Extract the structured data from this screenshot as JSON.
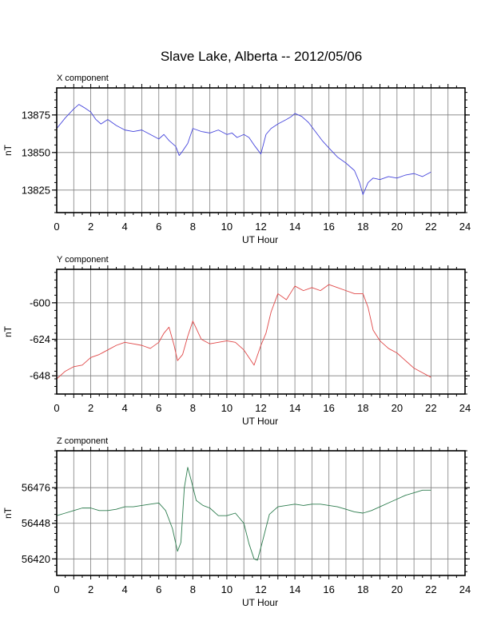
{
  "title": "Slave Lake, Alberta -- 2012/05/06",
  "chart_data": [
    {
      "type": "line",
      "title": "X component",
      "xlabel": "UT Hour",
      "ylabel": "nT",
      "xlim": [
        0,
        24
      ],
      "ylim": [
        13810,
        13893
      ],
      "xticks": [
        0,
        2,
        4,
        6,
        8,
        10,
        12,
        14,
        16,
        18,
        20,
        22,
        24
      ],
      "yticks": [
        13825,
        13850,
        13875
      ],
      "grid": true,
      "color": "#4646dc",
      "series": [
        {
          "x": [
            0,
            0.5,
            1,
            1.3,
            1.6,
            2,
            2.3,
            2.6,
            3,
            3.5,
            4,
            4.5,
            5,
            5.5,
            6,
            6.3,
            6.6,
            7,
            7.2,
            7.4,
            7.7,
            8,
            8.5,
            9,
            9.5,
            10,
            10.3,
            10.6,
            11,
            11.3,
            11.6,
            12,
            12.3,
            12.6,
            13,
            13.5,
            13.8,
            14,
            14.4,
            14.8,
            15.2,
            15.6,
            16,
            16.5,
            17,
            17.5,
            17.8,
            18,
            18.3,
            18.6,
            19,
            19.5,
            20,
            20.5,
            21,
            21.5,
            22
          ],
          "values": [
            13866,
            13873,
            13879,
            13882,
            13880,
            13877,
            13872,
            13869,
            13872,
            13868,
            13865,
            13864,
            13865,
            13862,
            13859,
            13862,
            13858,
            13854,
            13848,
            13851,
            13856,
            13866,
            13864,
            13863,
            13865,
            13862,
            13863,
            13860,
            13862,
            13860,
            13855,
            13849,
            13862,
            13866,
            13869,
            13872,
            13874,
            13876,
            13874,
            13870,
            13864,
            13858,
            13853,
            13847,
            13843,
            13838,
            13830,
            13822,
            13830,
            13833,
            13832,
            13834,
            13833,
            13835,
            13836,
            13834,
            13837
          ]
        }
      ]
    },
    {
      "type": "line",
      "title": "Y component",
      "xlabel": "UT Hour",
      "ylabel": "nT",
      "xlim": [
        0,
        24
      ],
      "ylim": [
        -660,
        -578
      ],
      "xticks": [
        0,
        2,
        4,
        6,
        8,
        10,
        12,
        14,
        16,
        18,
        20,
        22,
        24
      ],
      "yticks": [
        -648,
        -624,
        -600
      ],
      "grid": true,
      "color": "#e04848",
      "series": [
        {
          "x": [
            0,
            0.5,
            1,
            1.5,
            2,
            2.5,
            3,
            3.5,
            4,
            4.5,
            5,
            5.5,
            6,
            6.3,
            6.6,
            6.9,
            7.1,
            7.4,
            7.7,
            8,
            8.5,
            9,
            9.5,
            10,
            10.5,
            11,
            11.3,
            11.6,
            12,
            12.3,
            12.6,
            13,
            13.5,
            14,
            14.5,
            15,
            15.5,
            16,
            16.5,
            17,
            17.5,
            18,
            18.3,
            18.6,
            19,
            19.5,
            20,
            20.5,
            21,
            21.5,
            22
          ],
          "values": [
            -650,
            -645,
            -642,
            -641,
            -636,
            -634,
            -631,
            -628,
            -626,
            -627,
            -628,
            -630,
            -626,
            -620,
            -616,
            -628,
            -638,
            -634,
            -622,
            -612,
            -624,
            -627,
            -626,
            -625,
            -626,
            -631,
            -636,
            -641,
            -628,
            -620,
            -606,
            -594,
            -598,
            -589,
            -592,
            -590,
            -592,
            -588,
            -590,
            -592,
            -594,
            -594,
            -603,
            -618,
            -625,
            -630,
            -633,
            -638,
            -643,
            -646,
            -649
          ]
        }
      ]
    },
    {
      "type": "line",
      "title": "Z component",
      "xlabel": "UT Hour",
      "ylabel": "nT",
      "xlim": [
        0,
        24
      ],
      "ylim": [
        56407,
        56505
      ],
      "xticks": [
        0,
        2,
        4,
        6,
        8,
        10,
        12,
        14,
        16,
        18,
        20,
        22,
        24
      ],
      "yticks": [
        56420,
        56448,
        56476
      ],
      "grid": true,
      "color": "#2e7d4f",
      "series": [
        {
          "x": [
            0,
            0.5,
            1,
            1.5,
            2,
            2.5,
            3,
            3.5,
            4,
            4.5,
            5,
            5.5,
            6,
            6.4,
            6.8,
            7.1,
            7.3,
            7.5,
            7.7,
            7.9,
            8.2,
            8.6,
            9,
            9.5,
            10,
            10.5,
            11,
            11.3,
            11.6,
            11.8,
            12.1,
            12.5,
            13,
            13.5,
            14,
            14.5,
            15,
            15.5,
            16,
            16.5,
            17,
            17.5,
            18,
            18.5,
            19,
            19.5,
            20,
            20.5,
            21,
            21.5,
            22
          ],
          "values": [
            56454,
            56456,
            56458,
            56460,
            56460,
            56458,
            56458,
            56459,
            56461,
            56461,
            56462,
            56463,
            56464,
            56458,
            56444,
            56426,
            56433,
            56476,
            56492,
            56482,
            56466,
            56462,
            56460,
            56454,
            56454,
            56456,
            56448,
            56432,
            56420,
            56419,
            56434,
            56455,
            56461,
            56462,
            56463,
            56462,
            56463,
            56463,
            56462,
            56461,
            56459,
            56457,
            56456,
            56458,
            56461,
            56464,
            56467,
            56470,
            56472,
            56474,
            56474
          ]
        }
      ]
    }
  ]
}
